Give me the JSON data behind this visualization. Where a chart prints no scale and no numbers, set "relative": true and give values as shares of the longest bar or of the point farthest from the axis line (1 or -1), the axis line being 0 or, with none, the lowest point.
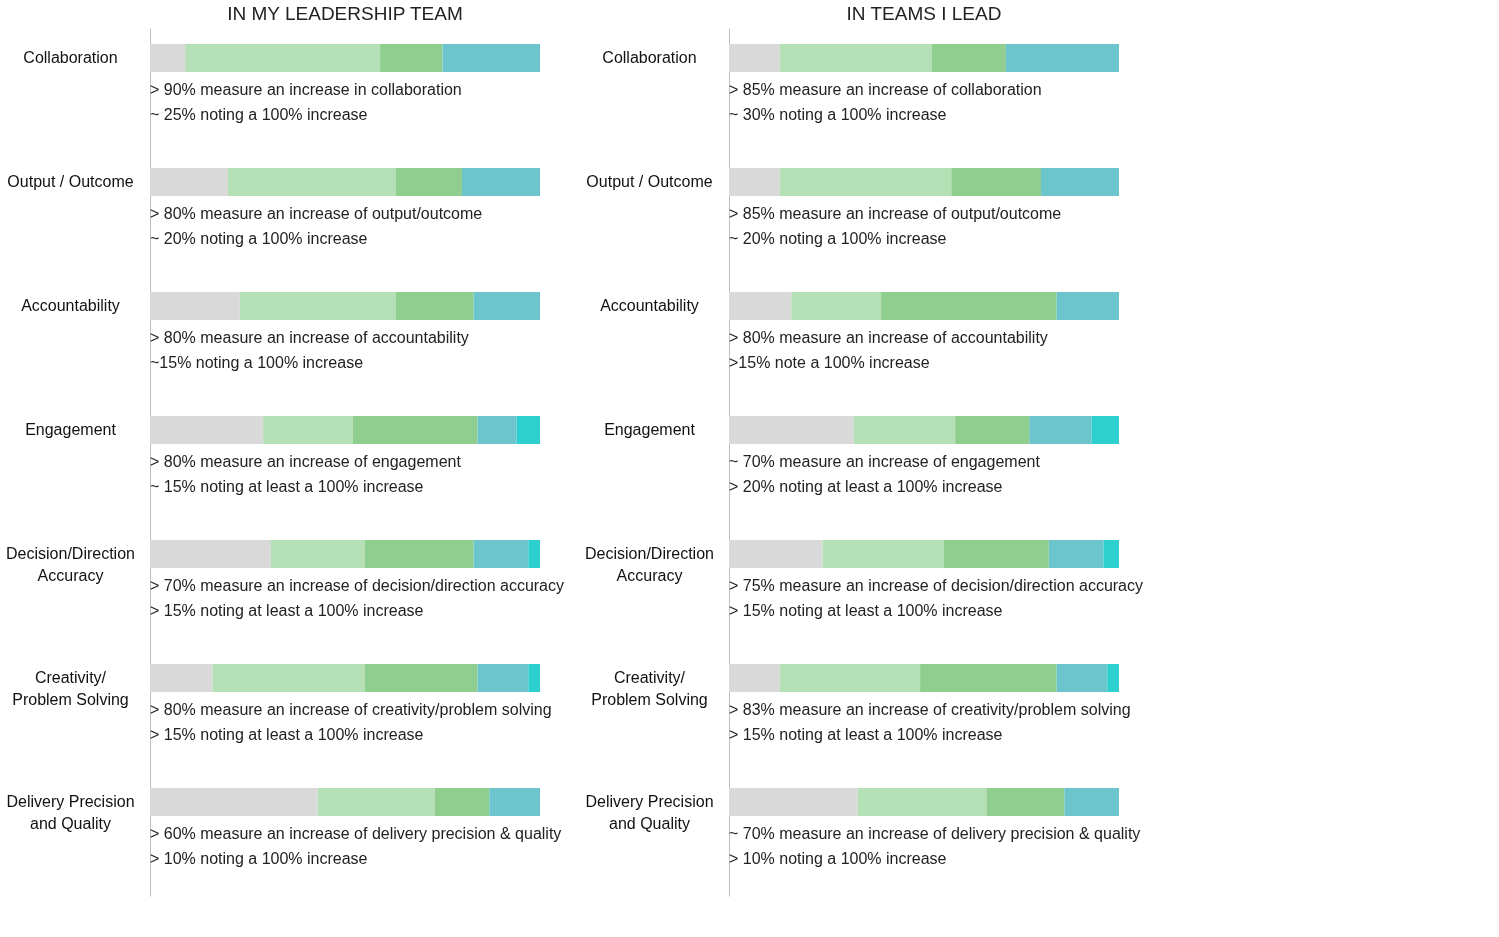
{
  "chart_data": [
    {
      "type": "bar",
      "orientation": "horizontal",
      "stacked": true,
      "relative": true,
      "title": "IN MY LEADERSHIP TEAM",
      "categories": [
        "Collaboration",
        "Output / Outcome",
        "Accountability",
        "Engagement",
        "Decision/Direction Accuracy",
        "Creativity/ Problem Solving",
        "Delivery Precision and Quality"
      ],
      "series": [
        {
          "color": "#d9d9d9",
          "values": [
            0.09,
            0.2,
            0.23,
            0.29,
            0.31,
            0.16,
            0.43
          ]
        },
        {
          "color": "#b5e0b5",
          "values": [
            0.5,
            0.43,
            0.4,
            0.23,
            0.24,
            0.39,
            0.3
          ]
        },
        {
          "color": "#8fce8f",
          "values": [
            0.16,
            0.17,
            0.2,
            0.32,
            0.28,
            0.29,
            0.14
          ]
        },
        {
          "color": "#6cc4cc",
          "values": [
            0.25,
            0.2,
            0.17,
            0.1,
            0.14,
            0.13,
            0.13
          ]
        },
        {
          "color": "#2ed0cf",
          "values": [
            null,
            null,
            null,
            0.06,
            0.03,
            0.03,
            null
          ]
        }
      ],
      "annotations": [
        "> 90% measure an increase in collaboration",
        "~ 25% noting a 100% increase",
        "> 80% measure an increase of output/outcome",
        "~ 20% noting a 100% increase",
        "> 80% measure an increase of accountability",
        "~15% noting a 100% increase",
        "> 80% measure an increase of engagement",
        "~ 15% noting at least a 100% increase",
        "> 70% measure an increase of decision/direction accuracy",
        "> 15% noting at least a 100% increase",
        "> 80% measure an increase of creativity/problem solving",
        "> 15% noting at least a 100% increase",
        "> 60% measure an increase of delivery precision & quality",
        "> 10% noting a 100% increase"
      ]
    },
    {
      "type": "bar",
      "orientation": "horizontal",
      "stacked": true,
      "relative": true,
      "title": "IN TEAMS I LEAD",
      "categories": [
        "Collaboration",
        "Output / Outcome",
        "Accountability",
        "Engagement",
        "Decision/Direction Accuracy",
        "Creativity/ Problem Solving",
        "Delivery Precision and Quality"
      ],
      "series": [
        {
          "color": "#d9d9d9",
          "values": [
            0.13,
            0.13,
            0.16,
            0.32,
            0.24,
            0.13,
            0.33
          ]
        },
        {
          "color": "#b5e0b5",
          "values": [
            0.39,
            0.44,
            0.23,
            0.26,
            0.31,
            0.36,
            0.33
          ]
        },
        {
          "color": "#8fce8f",
          "values": [
            0.19,
            0.23,
            0.45,
            0.19,
            0.27,
            0.35,
            0.2
          ]
        },
        {
          "color": "#6cc4cc",
          "values": [
            0.29,
            0.2,
            0.16,
            0.16,
            0.14,
            0.13,
            0.14
          ]
        },
        {
          "color": "#2ed0cf",
          "values": [
            null,
            null,
            null,
            0.07,
            0.04,
            0.03,
            null
          ]
        }
      ],
      "annotations": [
        "> 85% measure an increase of collaboration",
        "~ 30% noting a 100% increase",
        "> 85% measure an increase of output/outcome",
        "~ 20% noting a 100% increase",
        "> 80% measure an increase of accountability",
        ">15% note a 100% increase",
        "~ 70% measure an increase of engagement",
        "> 20% noting at least a 100% increase",
        "> 75% measure an increase of decision/direction accuracy",
        "> 15% noting at least a 100% increase",
        "> 83% measure an increase of creativity/problem solving",
        "> 15% noting at least a 100% increase",
        "~ 70% measure an increase of delivery precision & quality",
        "> 10% noting a 100% increase"
      ]
    }
  ]
}
